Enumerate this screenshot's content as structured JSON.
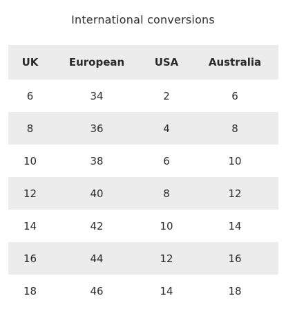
{
  "title": "International conversions",
  "table": {
    "headers": [
      "UK",
      "European",
      "USA",
      "Australia"
    ],
    "rows": [
      [
        "6",
        "34",
        "2",
        "6"
      ],
      [
        "8",
        "36",
        "4",
        "8"
      ],
      [
        "10",
        "38",
        "6",
        "10"
      ],
      [
        "12",
        "40",
        "8",
        "12"
      ],
      [
        "14",
        "42",
        "10",
        "14"
      ],
      [
        "16",
        "44",
        "12",
        "16"
      ],
      [
        "18",
        "46",
        "14",
        "18"
      ]
    ]
  },
  "colors": {
    "shaded_row": "#ececec",
    "text": "#2b2b2b"
  }
}
